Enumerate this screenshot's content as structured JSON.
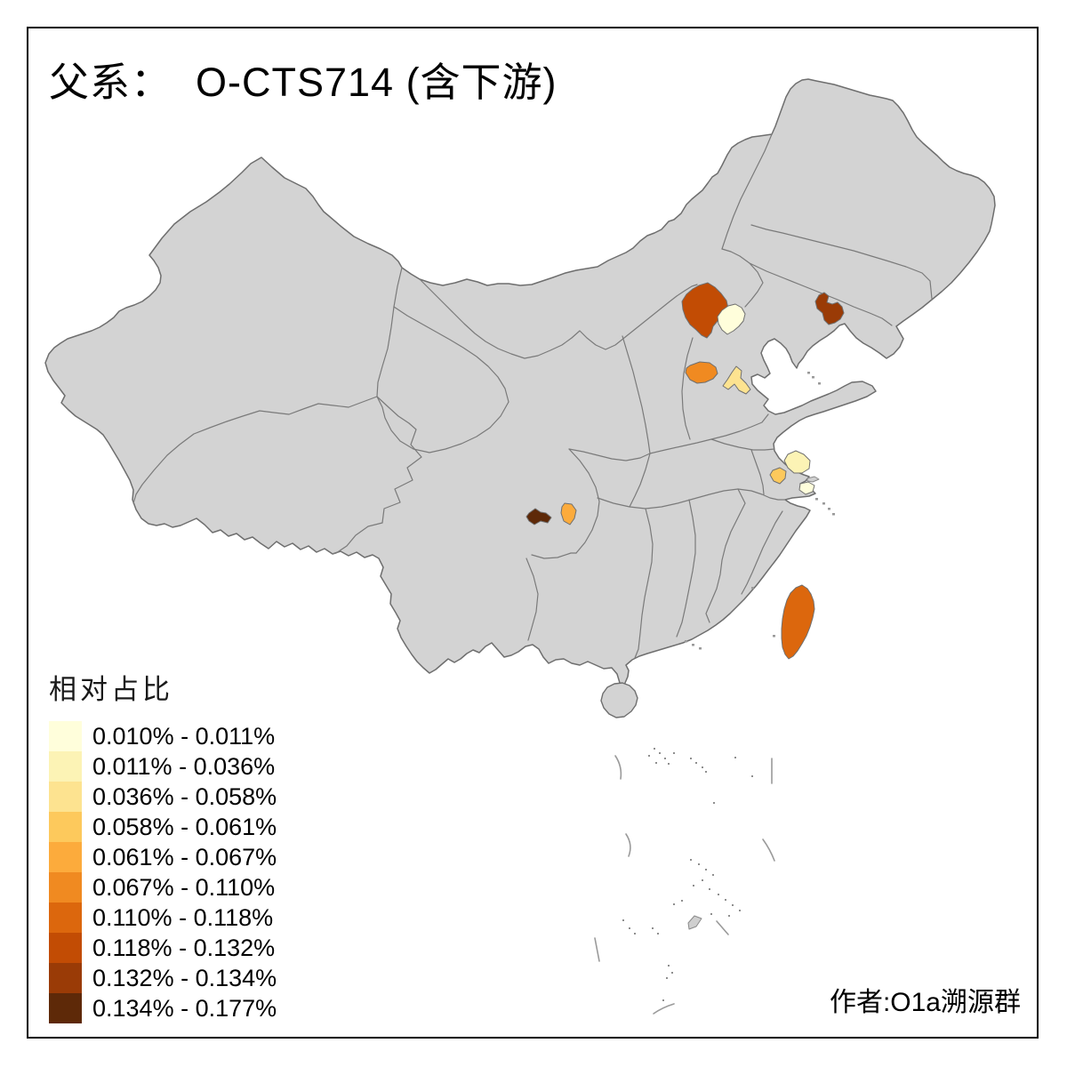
{
  "title": "父系：  O-CTS714 (含下游)",
  "legend": {
    "title": "相对占比",
    "bins": [
      {
        "label": "0.010% - 0.011%",
        "color": "#FFFEDB"
      },
      {
        "label": "0.011% - 0.036%",
        "color": "#FCF3B5"
      },
      {
        "label": "0.036% - 0.058%",
        "color": "#FDE390"
      },
      {
        "label": "0.058% - 0.061%",
        "color": "#FDC95C"
      },
      {
        "label": "0.061% - 0.067%",
        "color": "#FCAB3C"
      },
      {
        "label": "0.067% - 0.110%",
        "color": "#F08A21"
      },
      {
        "label": "0.110% - 0.118%",
        "color": "#DC670D"
      },
      {
        "label": "0.118% - 0.132%",
        "color": "#C24C04"
      },
      {
        "label": "0.132% - 0.134%",
        "color": "#9A3B06"
      },
      {
        "label": "0.134% - 0.177%",
        "color": "#5E2908"
      }
    ]
  },
  "attribution": "作者:O1a溯源群",
  "map": {
    "base_color": "#D3D3D3",
    "border_color": "#7A7A7A",
    "sea_color": "#FFFFFF",
    "regions": [
      {
        "id": "zhangjiakou",
        "bin": 8
      },
      {
        "id": "beijing",
        "bin": 1
      },
      {
        "id": "liaoning-east",
        "bin": 9
      },
      {
        "id": "shijiazhuang",
        "bin": 6
      },
      {
        "id": "liaocheng",
        "bin": 3
      },
      {
        "id": "jiangsu-coastal",
        "bin": 2
      },
      {
        "id": "taizhou",
        "bin": 4
      },
      {
        "id": "shanghai",
        "bin": 1
      },
      {
        "id": "sichuan-south",
        "bin": 10
      },
      {
        "id": "luzhou",
        "bin": 5
      },
      {
        "id": "taiwan",
        "bin": 7
      }
    ]
  },
  "chart_data": {
    "type": "choropleth",
    "title": "父系：  O-CTS714 (含下游)",
    "legend_title": "相对占比",
    "legend_position": "bottom-left",
    "base_map": "China with province borders; non-highlighted prefectures gray (#D3D3D3), sea white",
    "bins": [
      {
        "range": "0.010% - 0.011%",
        "color": "#FFFEDB"
      },
      {
        "range": "0.011% - 0.036%",
        "color": "#FCF3B5"
      },
      {
        "range": "0.036% - 0.058%",
        "color": "#FDE390"
      },
      {
        "range": "0.058% - 0.061%",
        "color": "#FDC95C"
      },
      {
        "range": "0.061% - 0.067%",
        "color": "#FCAB3C"
      },
      {
        "range": "0.067% - 0.110%",
        "color": "#F08A21"
      },
      {
        "range": "0.110% - 0.118%",
        "color": "#DC670D"
      },
      {
        "range": "0.118% - 0.132%",
        "color": "#C24C04"
      },
      {
        "range": "0.132% - 0.134%",
        "color": "#9A3B06"
      },
      {
        "range": "0.134% - 0.177%",
        "color": "#5E2908"
      }
    ],
    "regions": [
      {
        "area": "northwest-hebei (Zhangjiakou area)",
        "value_range": "0.118% - 0.132%"
      },
      {
        "area": "beijing",
        "value_range": "0.010% - 0.011%"
      },
      {
        "area": "eastern-liaoning (Fushun/Benxi area)",
        "value_range": "0.132% - 0.134%"
      },
      {
        "area": "south-central-hebei (Shijiazhuang area)",
        "value_range": "0.067% - 0.110%"
      },
      {
        "area": "west-shandong (Liaocheng/Dezhou area)",
        "value_range": "0.036% - 0.058%"
      },
      {
        "area": "coastal-jiangsu (Yancheng/Nantong area)",
        "value_range": "0.011% - 0.036%"
      },
      {
        "area": "central-jiangsu (Taizhou area)",
        "value_range": "0.058% - 0.061%"
      },
      {
        "area": "shanghai",
        "value_range": "0.010% - 0.011%"
      },
      {
        "area": "southern-sichuan (Zigong/Neijiang area)",
        "value_range": "0.134% - 0.177%"
      },
      {
        "area": "southern-sichuan (Luzhou area)",
        "value_range": "0.061% - 0.067%"
      },
      {
        "area": "taiwan",
        "value_range": "0.110% - 0.118%"
      }
    ],
    "attribution": "作者:O1a溯源群"
  }
}
